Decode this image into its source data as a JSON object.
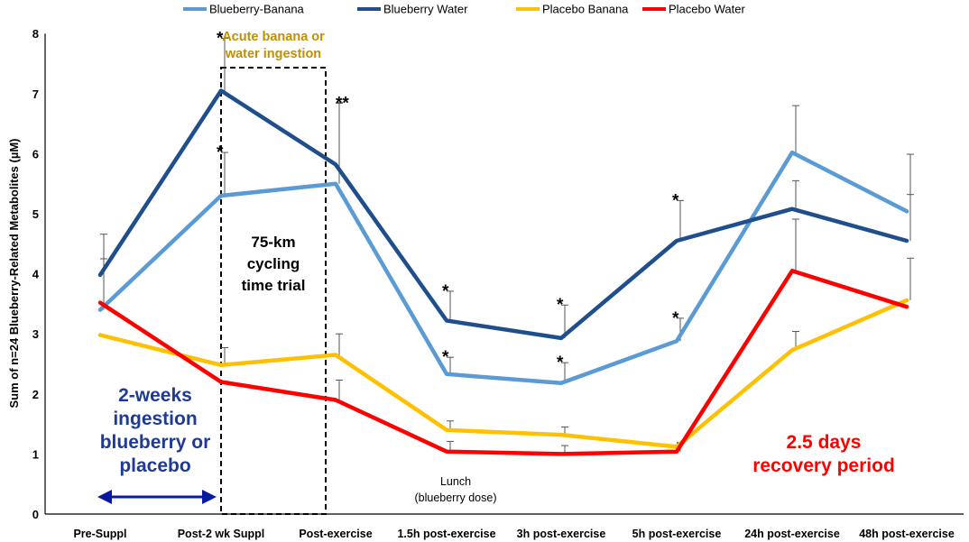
{
  "chart_data": {
    "type": "line",
    "title": "",
    "ylabel": "Sum of n=24 Blueberry-Related Metabolites  (µM)",
    "xlabel": "",
    "ylim": [
      0,
      8
    ],
    "yticks": [
      0,
      1,
      2,
      3,
      4,
      5,
      6,
      7,
      8
    ],
    "categories": [
      "Pre-Suppl",
      "Post-2 wk Suppl",
      "Post-exercise",
      "1.5h post-exercise",
      "3h post-exercise",
      "5h post-exercise",
      "24h post-exercise",
      "48h post-exercise"
    ],
    "legend_position": "top",
    "series": [
      {
        "name": "Blueberry-Banana",
        "color": "#5B9BD5",
        "values": [
          3.4,
          5.3,
          5.5,
          2.33,
          2.18,
          2.88,
          6.02,
          5.04
        ],
        "errors": [
          0.85,
          0.72,
          1.35,
          0.28,
          0.34,
          0.38,
          0.78,
          0.95
        ]
      },
      {
        "name": "Blueberry Water",
        "color": "#1F4E8C",
        "values": [
          3.98,
          7.05,
          5.82,
          3.22,
          2.93,
          4.55,
          5.08,
          4.55
        ],
        "errors": [
          0.68,
          0.87,
          1.02,
          0.49,
          0.55,
          0.67,
          0.47,
          0.77
        ]
      },
      {
        "name": "Placebo Banana",
        "color": "#FFC000",
        "values": [
          2.98,
          2.48,
          2.65,
          1.4,
          1.32,
          1.12,
          2.73,
          3.56
        ],
        "errors": [
          0.0,
          0.29,
          0.35,
          0.15,
          0.13,
          0.07,
          0.31,
          0.7
        ]
      },
      {
        "name": "Placebo Water",
        "color": "#FF0000",
        "values": [
          3.52,
          2.2,
          1.9,
          1.04,
          1.0,
          1.04,
          4.05,
          3.45
        ],
        "errors": [
          0.0,
          0.0,
          0.33,
          0.17,
          0.14,
          0.14,
          0.86,
          0.0
        ]
      }
    ],
    "significance": [
      {
        "series": "Blueberry Water",
        "index": 1,
        "label": "*"
      },
      {
        "series": "Blueberry-Banana",
        "index": 1,
        "label": "*"
      },
      {
        "series": "Blueberry Water",
        "index": 2,
        "label": "**"
      },
      {
        "series": "Blueberry Water",
        "index": 3,
        "label": "*"
      },
      {
        "series": "Blueberry-Banana",
        "index": 3,
        "label": "*"
      },
      {
        "series": "Blueberry Water",
        "index": 4,
        "label": "*"
      },
      {
        "series": "Blueberry-Banana",
        "index": 4,
        "label": "*"
      },
      {
        "series": "Blueberry Water",
        "index": 5,
        "label": "*"
      },
      {
        "series": "Blueberry-Banana",
        "index": 5,
        "label": "*"
      }
    ],
    "annotations": {
      "acute_line1": "Acute banana or",
      "acute_line2": "water ingestion",
      "trial_line1": "75-km",
      "trial_line2": "cycling",
      "trial_line3": "time trial",
      "ingestion_line1": "2-weeks",
      "ingestion_line2": "ingestion",
      "ingestion_line3": "blueberry or",
      "ingestion_line4": "placebo",
      "lunch_line1": "Lunch",
      "lunch_line2": "(blueberry dose)",
      "recovery_line1": "2.5 days",
      "recovery_line2": "recovery period"
    },
    "colors": {
      "acute_text": "#C09000",
      "ingestion_text": "#1F3A93",
      "arrow": "#0A1AA0",
      "recovery_text": "#FF0000",
      "errorbar": "#555555"
    }
  }
}
